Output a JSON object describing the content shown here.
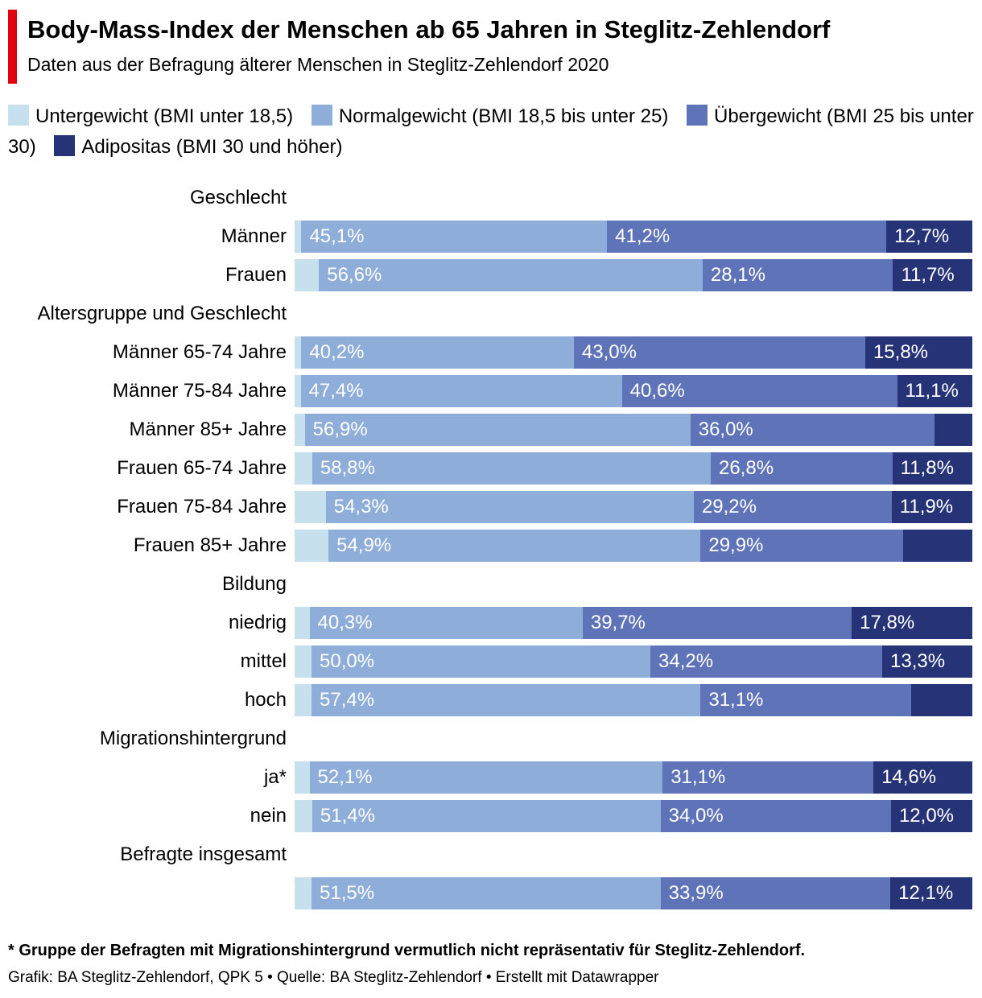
{
  "header": {
    "title": "Body-Mass-Index der Menschen ab 65 Jahren in Steglitz-Zehlendorf",
    "subtitle": "Daten aus der Befragung älterer Menschen in Steglitz-Zehlendorf 2020"
  },
  "footer": {
    "note": "* Gruppe der Befragten mit Migrationshintergrund vermutlich nicht repräsentativ für Steglitz-Zehlendorf.",
    "credits": "Grafik: BA Steglitz-Zehlendorf, QPK 5 • Quelle: BA Steglitz-Zehlendorf • Erstellt mit Datawrapper"
  },
  "chart_data": {
    "type": "bar",
    "orientation": "horizontal",
    "stacked": true,
    "title": "Body-Mass-Index der Menschen ab 65 Jahren in Steglitz-Zehlendorf",
    "xlim": [
      0,
      100
    ],
    "legend_position": "top",
    "series": [
      {
        "name": "Untergewicht (BMI unter 18,5)",
        "color": "#c6e0ee"
      },
      {
        "name": "Normalgewicht (BMI 18,5 bis unter 25)",
        "color": "#8eaed9"
      },
      {
        "name": "Übergewicht (BMI 25 bis unter 30)",
        "color": "#5f74b8"
      },
      {
        "name": "Adipositas (BMI 30 und höher)",
        "color": "#263477"
      }
    ],
    "groups": [
      {
        "label": "Geschlecht",
        "rows": [
          {
            "label": "Männer",
            "values": [
              1.0,
              45.1,
              41.2,
              12.7
            ],
            "labels": [
              "",
              "45,1%",
              "41,2%",
              "12,7%"
            ]
          },
          {
            "label": "Frauen",
            "values": [
              3.6,
              56.6,
              28.1,
              11.7
            ],
            "labels": [
              "",
              "56,6%",
              "28,1%",
              "11,7%"
            ]
          }
        ]
      },
      {
        "label": "Altersgruppe und Geschlecht",
        "rows": [
          {
            "label": "Männer 65-74 Jahre",
            "values": [
              1.0,
              40.2,
              43.0,
              15.8
            ],
            "labels": [
              "",
              "40,2%",
              "43,0%",
              "15,8%"
            ]
          },
          {
            "label": "Männer 75-84 Jahre",
            "values": [
              0.9,
              47.4,
              40.6,
              11.1
            ],
            "labels": [
              "",
              "47,4%",
              "40,6%",
              "11,1%"
            ]
          },
          {
            "label": "Männer 85+ Jahre",
            "values": [
              1.5,
              56.9,
              36.0,
              5.6
            ],
            "labels": [
              "",
              "56,9%",
              "36,0%",
              ""
            ]
          },
          {
            "label": "Frauen 65-74 Jahre",
            "values": [
              2.6,
              58.8,
              26.8,
              11.8
            ],
            "labels": [
              "",
              "58,8%",
              "26,8%",
              "11,8%"
            ]
          },
          {
            "label": "Frauen 75-84 Jahre",
            "values": [
              4.6,
              54.3,
              29.2,
              11.9
            ],
            "labels": [
              "",
              "54,3%",
              "29,2%",
              "11,9%"
            ]
          },
          {
            "label": "Frauen 85+ Jahre",
            "values": [
              5.0,
              54.9,
              29.9,
              10.2
            ],
            "labels": [
              "",
              "54,9%",
              "29,9%",
              ""
            ]
          }
        ]
      },
      {
        "label": "Bildung",
        "rows": [
          {
            "label": "niedrig",
            "values": [
              2.2,
              40.3,
              39.7,
              17.8
            ],
            "labels": [
              "",
              "40,3%",
              "39,7%",
              "17,8%"
            ]
          },
          {
            "label": "mittel",
            "values": [
              2.5,
              50.0,
              34.2,
              13.3
            ],
            "labels": [
              "",
              "50,0%",
              "34,2%",
              "13,3%"
            ]
          },
          {
            "label": "hoch",
            "values": [
              2.5,
              57.4,
              31.1,
              9.0
            ],
            "labels": [
              "",
              "57,4%",
              "31,1%",
              ""
            ]
          }
        ]
      },
      {
        "label": "Migrationshintergrund",
        "rows": [
          {
            "label": "ja*",
            "values": [
              2.2,
              52.1,
              31.1,
              14.6
            ],
            "labels": [
              "",
              "52,1%",
              "31,1%",
              "14,6%"
            ]
          },
          {
            "label": "nein",
            "values": [
              2.6,
              51.4,
              34.0,
              12.0
            ],
            "labels": [
              "",
              "51,4%",
              "34,0%",
              "12,0%"
            ]
          }
        ]
      },
      {
        "label": "Befragte insgesamt",
        "rows": [
          {
            "label": "",
            "values": [
              2.5,
              51.5,
              33.9,
              12.1
            ],
            "labels": [
              "",
              "51,5%",
              "33,9%",
              "12,1%"
            ]
          }
        ]
      }
    ]
  }
}
